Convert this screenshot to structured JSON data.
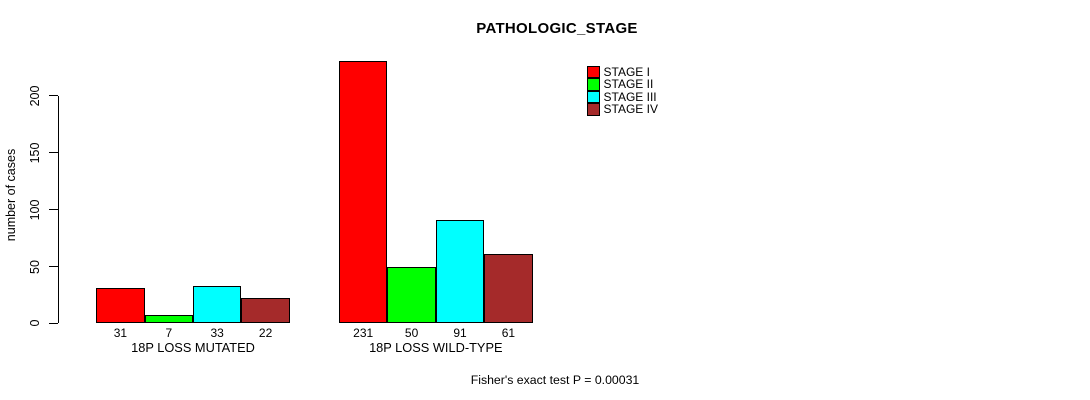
{
  "chart_data": {
    "type": "bar",
    "title": "PATHOLOGIC_STAGE",
    "ylabel": "number of cases",
    "annotation": "Fisher's exact test P = 0.00031",
    "categories": [
      "18P LOSS MUTATED",
      "18P LOSS WILD-TYPE"
    ],
    "series": [
      {
        "name": "STAGE I",
        "color": "#ff0000",
        "values": [
          31,
          231
        ]
      },
      {
        "name": "STAGE II",
        "color": "#00ff00",
        "values": [
          7,
          50
        ]
      },
      {
        "name": "STAGE III",
        "color": "#00ffff",
        "values": [
          33,
          91
        ]
      },
      {
        "name": "STAGE IV",
        "color": "#a52a2a",
        "values": [
          22,
          61
        ]
      }
    ],
    "yticks": [
      0,
      50,
      100,
      150,
      200
    ],
    "ylim": [
      0,
      231
    ],
    "grid": false,
    "legend_position": "top-right",
    "bar_value_labels_shown": true,
    "axis_color": "#000000",
    "background_color": "#ffffff"
  }
}
